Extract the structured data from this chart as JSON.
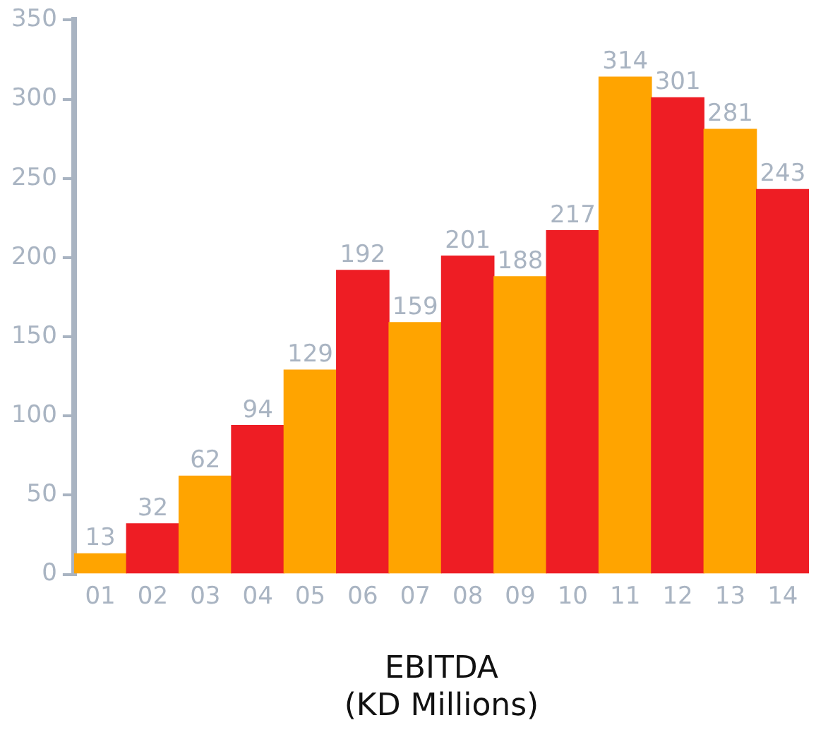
{
  "chart_data": {
    "type": "bar",
    "xlabel": "EBITDA\n(KD Millions)",
    "categories": [
      "01",
      "02",
      "03",
      "04",
      "05",
      "06",
      "07",
      "08",
      "09",
      "10",
      "11",
      "12",
      "13",
      "14"
    ],
    "values": [
      13,
      32,
      62,
      94,
      129,
      192,
      159,
      201,
      188,
      217,
      314,
      301,
      281,
      243
    ],
    "colors": [
      "#ffa400",
      "#ee1d24",
      "#ffa400",
      "#ee1d24",
      "#ffa400",
      "#ee1d24",
      "#ffa400",
      "#ee1d24",
      "#ffa400",
      "#ee1d24",
      "#ffa400",
      "#ee1d24",
      "#ffa400",
      "#ee1d24"
    ],
    "ylim": [
      0,
      350
    ],
    "yticks": [
      0,
      50,
      100,
      150,
      200,
      250,
      300,
      350
    ],
    "grid": false,
    "legend": false,
    "data_labels": true
  }
}
